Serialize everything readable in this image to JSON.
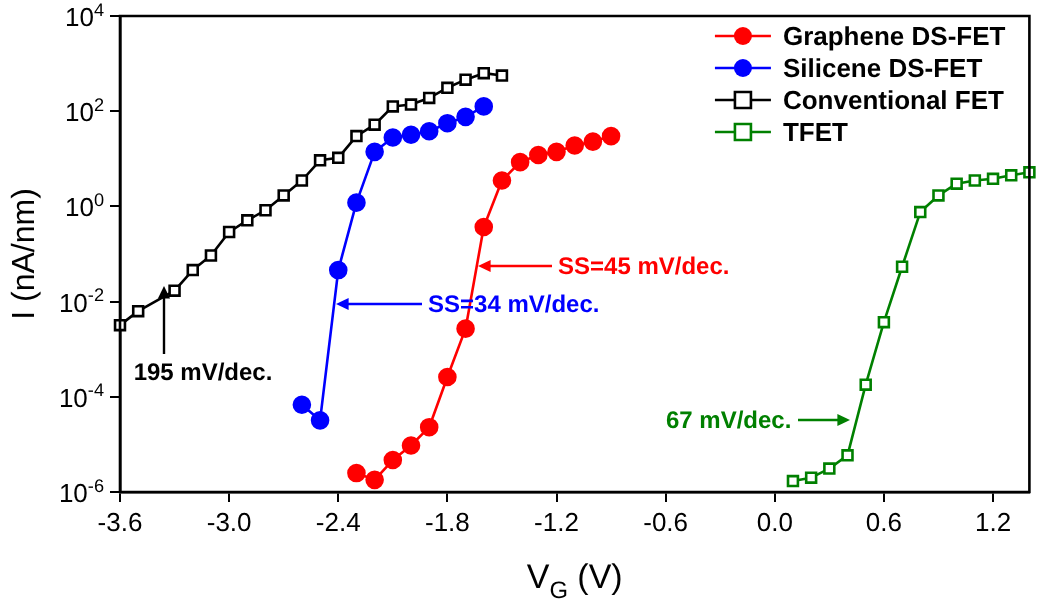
{
  "chart_data": {
    "type": "line",
    "xlabel": "V$_{G}$ (V)",
    "ylabel": "I (nA/nm)",
    "log": "y",
    "legend": "top right",
    "grid": false,
    "xlim": [
      -3.6,
      1.4
    ],
    "xticks": [
      {
        "value": -3.6,
        "label": "-3.6"
      },
      {
        "value": -3.0,
        "label": "-3.0"
      },
      {
        "value": -2.4,
        "label": "-2.4"
      },
      {
        "value": -1.8,
        "label": "-1.8"
      },
      {
        "value": -1.2,
        "label": "-1.2"
      },
      {
        "value": -0.6,
        "label": "-0.6"
      },
      {
        "value": 0,
        "label": "0.0"
      },
      {
        "value": 0.6,
        "label": "0.6"
      },
      {
        "value": 1.2,
        "label": "1.2"
      }
    ],
    "ylim": [
      1e-06,
      10000
    ],
    "yticks": [
      {
        "value": 1e-06,
        "label": "10$^{-6}$"
      },
      {
        "value": 0.0001,
        "label": "10$^{-4}$"
      },
      {
        "value": 0.01,
        "label": "10$^{-2}$"
      },
      {
        "value": 1,
        "label": "10$^{0}$"
      },
      {
        "value": 100,
        "label": "10$^{2}$"
      },
      {
        "value": 10000,
        "label": "10$^{4}$"
      }
    ],
    "series": [
      {
        "name": "Graphene DS-FET",
        "color": "#ff0000",
        "marker": "circle",
        "x": [
          -2.3,
          -2.2,
          -2.1,
          -2.0,
          -1.9,
          -1.8,
          -1.7,
          -1.6,
          -1.5,
          -1.4,
          -1.3,
          -1.2,
          -1.1,
          -1.0,
          -0.9
        ],
        "values": [
          2.5e-06,
          1.8e-06,
          4.7e-06,
          9.5e-06,
          2.3e-05,
          0.00026,
          0.0027,
          0.37,
          3.5,
          8.5,
          12,
          14,
          19,
          23,
          30
        ]
      },
      {
        "name": "Silicene DS-FET",
        "color": "#0000ff",
        "marker": "circle",
        "x": [
          -2.6,
          -2.5,
          -2.4,
          -2.3,
          -2.2,
          -2.1,
          -2.0,
          -1.9,
          -1.8,
          -1.7,
          -1.6
        ],
        "values": [
          6.8e-05,
          3.2e-05,
          0.046,
          1.2,
          14,
          28,
          32,
          38,
          56,
          76,
          126
        ]
      },
      {
        "name": "Conventional FET",
        "color": "#000000",
        "marker": "square",
        "x": [
          -3.6,
          -3.5,
          -3.3,
          -3.2,
          -3.1,
          -3.0,
          -2.9,
          -2.8,
          -2.7,
          -2.6,
          -2.5,
          -2.4,
          -2.3,
          -2.2,
          -2.1,
          -2.0,
          -1.9,
          -1.8,
          -1.7,
          -1.6,
          -1.5
        ],
        "values": [
          0.0032,
          0.0063,
          0.017,
          0.046,
          0.093,
          0.29,
          0.51,
          0.83,
          1.7,
          3.5,
          9.3,
          10.5,
          30,
          52,
          126,
          138,
          190,
          310,
          460,
          630,
          560
        ]
      },
      {
        "name": "TFET",
        "color": "#008000",
        "marker": "square",
        "x": [
          0.1,
          0.2,
          0.3,
          0.4,
          0.5,
          0.6,
          0.7,
          0.8,
          0.9,
          1.0,
          1.1,
          1.2,
          1.3,
          1.4
        ],
        "values": [
          1.7e-06,
          2e-06,
          3.1e-06,
          5.9e-06,
          0.00018,
          0.0037,
          0.054,
          0.76,
          1.7,
          3,
          3.5,
          3.8,
          4.5,
          5.2
        ]
      }
    ],
    "annotations": [
      "SS=45 mV/dec.",
      "SS=34 mV/dec.",
      {
        "text": "195 mV/dec.",
        "x": -3.36,
        "y": 0.021
      },
      {
        "text": "67 mV/dec.",
        "x": 0.41,
        "y": 3.2e-05
      }
    ]
  }
}
